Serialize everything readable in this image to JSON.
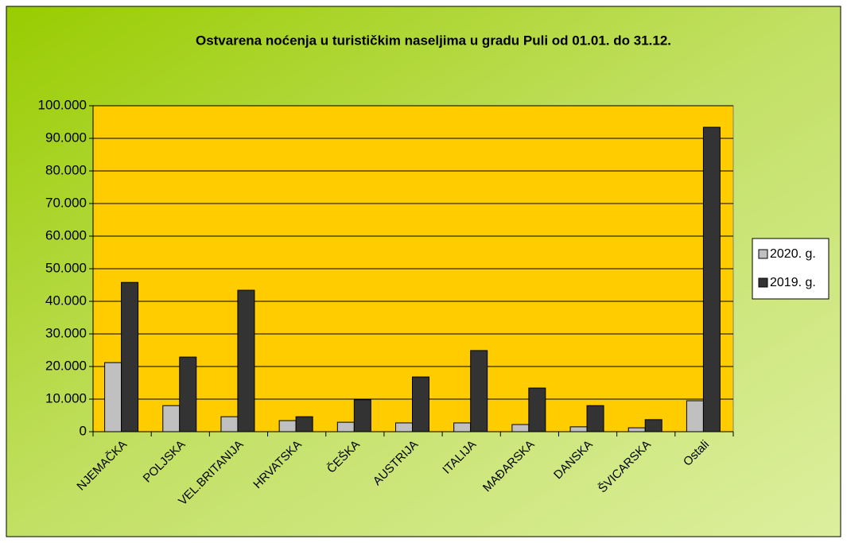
{
  "chart_data": {
    "type": "bar",
    "title": "Ostvarena noćenja  u turističkim naseljima  u gradu Puli od 01.01. do 31.12.",
    "categories": [
      "NJEMAČKA",
      "POLJSKA",
      "VEL.BRITANIJA",
      "HRVATSKA",
      "ČEŠKA",
      "AUSTRIJA",
      "ITALIJA",
      "MAĐARSKA",
      "DANSKA",
      "ŠVICARSKA",
      "Ostali"
    ],
    "series": [
      {
        "name": "2020. g.",
        "color": "#c0c0c0",
        "values": [
          21200,
          8000,
          4600,
          3400,
          2900,
          2700,
          2700,
          2200,
          1500,
          1200,
          9500
        ]
      },
      {
        "name": "2019. g.",
        "color": "#333333",
        "values": [
          45800,
          22900,
          43400,
          4600,
          9800,
          16800,
          24900,
          13400,
          8000,
          3700,
          93400
        ]
      }
    ],
    "ylim": [
      0,
      100000
    ],
    "yticks": [
      0,
      {
        "value": 10000,
        "label": "10.000"
      },
      {
        "value": 20000,
        "label": "20.000"
      },
      {
        "value": 30000,
        "label": "30.000"
      },
      {
        "value": 40000,
        "label": "40.000"
      },
      {
        "value": 50000,
        "label": "50.000"
      },
      {
        "value": 60000,
        "label": "60.000"
      },
      {
        "value": 70000,
        "label": "70.000"
      },
      {
        "value": 80000,
        "label": "80.000"
      },
      {
        "value": 90000,
        "label": "90.000"
      },
      {
        "value": 100000,
        "label": "100.000"
      }
    ],
    "grid": true,
    "plot_background": "#ffcc00",
    "legend": "right"
  }
}
